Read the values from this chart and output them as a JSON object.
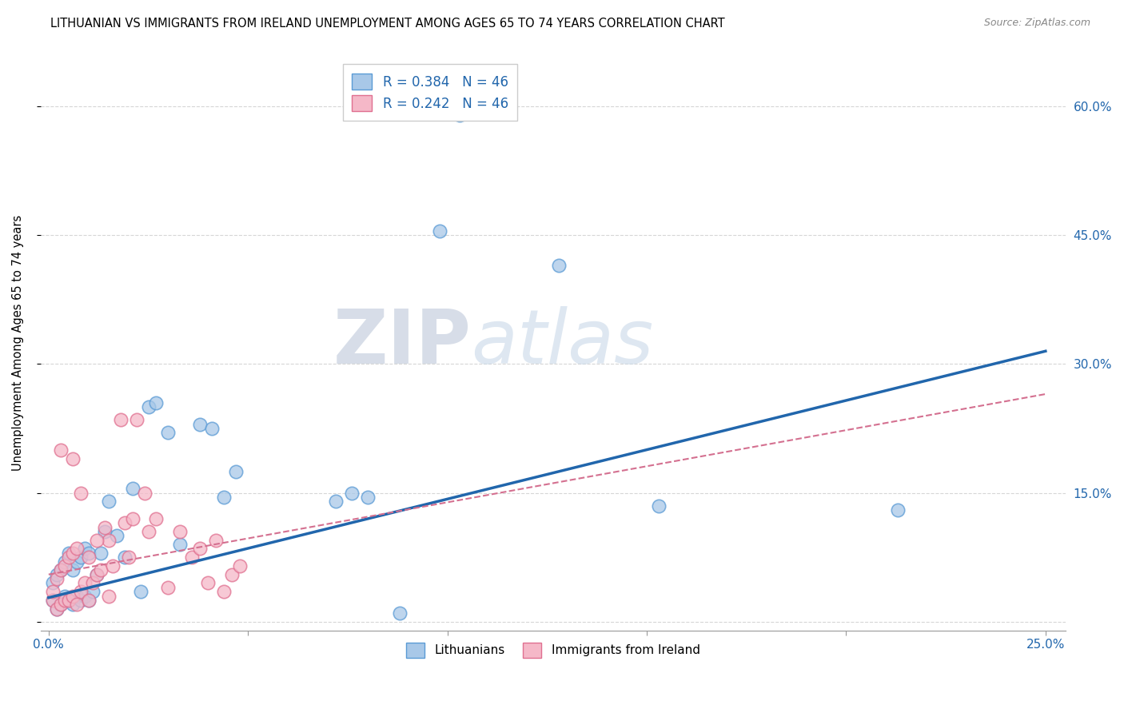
{
  "title": "LITHUANIAN VS IMMIGRANTS FROM IRELAND UNEMPLOYMENT AMONG AGES 65 TO 74 YEARS CORRELATION CHART",
  "source": "Source: ZipAtlas.com",
  "xlabel": "",
  "ylabel": "Unemployment Among Ages 65 to 74 years",
  "xlim": [
    -0.002,
    0.255
  ],
  "ylim": [
    -0.01,
    0.66
  ],
  "xticks": [
    0.0,
    0.05,
    0.1,
    0.15,
    0.2,
    0.25
  ],
  "xticklabels": [
    "0.0%",
    "",
    "",
    "",
    "",
    "25.0%"
  ],
  "yticks": [
    0.0,
    0.15,
    0.3,
    0.45,
    0.6
  ],
  "yticklabels_right": [
    "",
    "15.0%",
    "30.0%",
    "45.0%",
    "60.0%"
  ],
  "legend_r1": "R = 0.384",
  "legend_n1": "N = 46",
  "legend_r2": "R = 0.242",
  "legend_n2": "N = 46",
  "legend_label1": "Lithuanians",
  "legend_label2": "Immigrants from Ireland",
  "color_blue": "#a8c8e8",
  "color_pink": "#f5b8c8",
  "edge_blue": "#5b9bd5",
  "edge_pink": "#e07090",
  "trend_blue": "#2166ac",
  "trend_pink": "#d47090",
  "legend_text_color": "#2166ac",
  "watermark_zip": "ZIP",
  "watermark_atlas": "atlas",
  "blue_x": [
    0.001,
    0.001,
    0.002,
    0.002,
    0.003,
    0.003,
    0.004,
    0.004,
    0.005,
    0.005,
    0.006,
    0.006,
    0.007,
    0.007,
    0.008,
    0.008,
    0.009,
    0.009,
    0.01,
    0.01,
    0.011,
    0.012,
    0.013,
    0.014,
    0.015,
    0.017,
    0.019,
    0.021,
    0.023,
    0.025,
    0.027,
    0.03,
    0.033,
    0.038,
    0.041,
    0.044,
    0.047,
    0.072,
    0.076,
    0.08,
    0.088,
    0.098,
    0.103,
    0.128,
    0.153,
    0.213
  ],
  "blue_y": [
    0.025,
    0.045,
    0.015,
    0.055,
    0.02,
    0.06,
    0.03,
    0.07,
    0.025,
    0.08,
    0.02,
    0.06,
    0.03,
    0.07,
    0.025,
    0.075,
    0.03,
    0.085,
    0.025,
    0.08,
    0.035,
    0.055,
    0.08,
    0.105,
    0.14,
    0.1,
    0.075,
    0.155,
    0.035,
    0.25,
    0.255,
    0.22,
    0.09,
    0.23,
    0.225,
    0.145,
    0.175,
    0.14,
    0.15,
    0.145,
    0.01,
    0.455,
    0.59,
    0.415,
    0.135,
    0.13
  ],
  "pink_x": [
    0.001,
    0.001,
    0.002,
    0.002,
    0.003,
    0.003,
    0.004,
    0.004,
    0.005,
    0.005,
    0.006,
    0.006,
    0.007,
    0.007,
    0.008,
    0.009,
    0.01,
    0.011,
    0.012,
    0.013,
    0.014,
    0.015,
    0.016,
    0.018,
    0.019,
    0.02,
    0.021,
    0.022,
    0.024,
    0.025,
    0.027,
    0.03,
    0.033,
    0.036,
    0.038,
    0.04,
    0.042,
    0.044,
    0.046,
    0.048,
    0.003,
    0.006,
    0.008,
    0.01,
    0.012,
    0.015
  ],
  "pink_y": [
    0.025,
    0.035,
    0.015,
    0.05,
    0.02,
    0.06,
    0.025,
    0.065,
    0.025,
    0.075,
    0.03,
    0.08,
    0.02,
    0.085,
    0.035,
    0.045,
    0.025,
    0.045,
    0.055,
    0.06,
    0.11,
    0.095,
    0.065,
    0.235,
    0.115,
    0.075,
    0.12,
    0.235,
    0.15,
    0.105,
    0.12,
    0.04,
    0.105,
    0.075,
    0.085,
    0.045,
    0.095,
    0.035,
    0.055,
    0.065,
    0.2,
    0.19,
    0.15,
    0.075,
    0.095,
    0.03
  ],
  "trend_blue_x0": 0.0,
  "trend_blue_y0": 0.028,
  "trend_blue_x1": 0.25,
  "trend_blue_y1": 0.315,
  "trend_pink_x0": 0.0,
  "trend_pink_y0": 0.055,
  "trend_pink_x1": 0.25,
  "trend_pink_y1": 0.265
}
